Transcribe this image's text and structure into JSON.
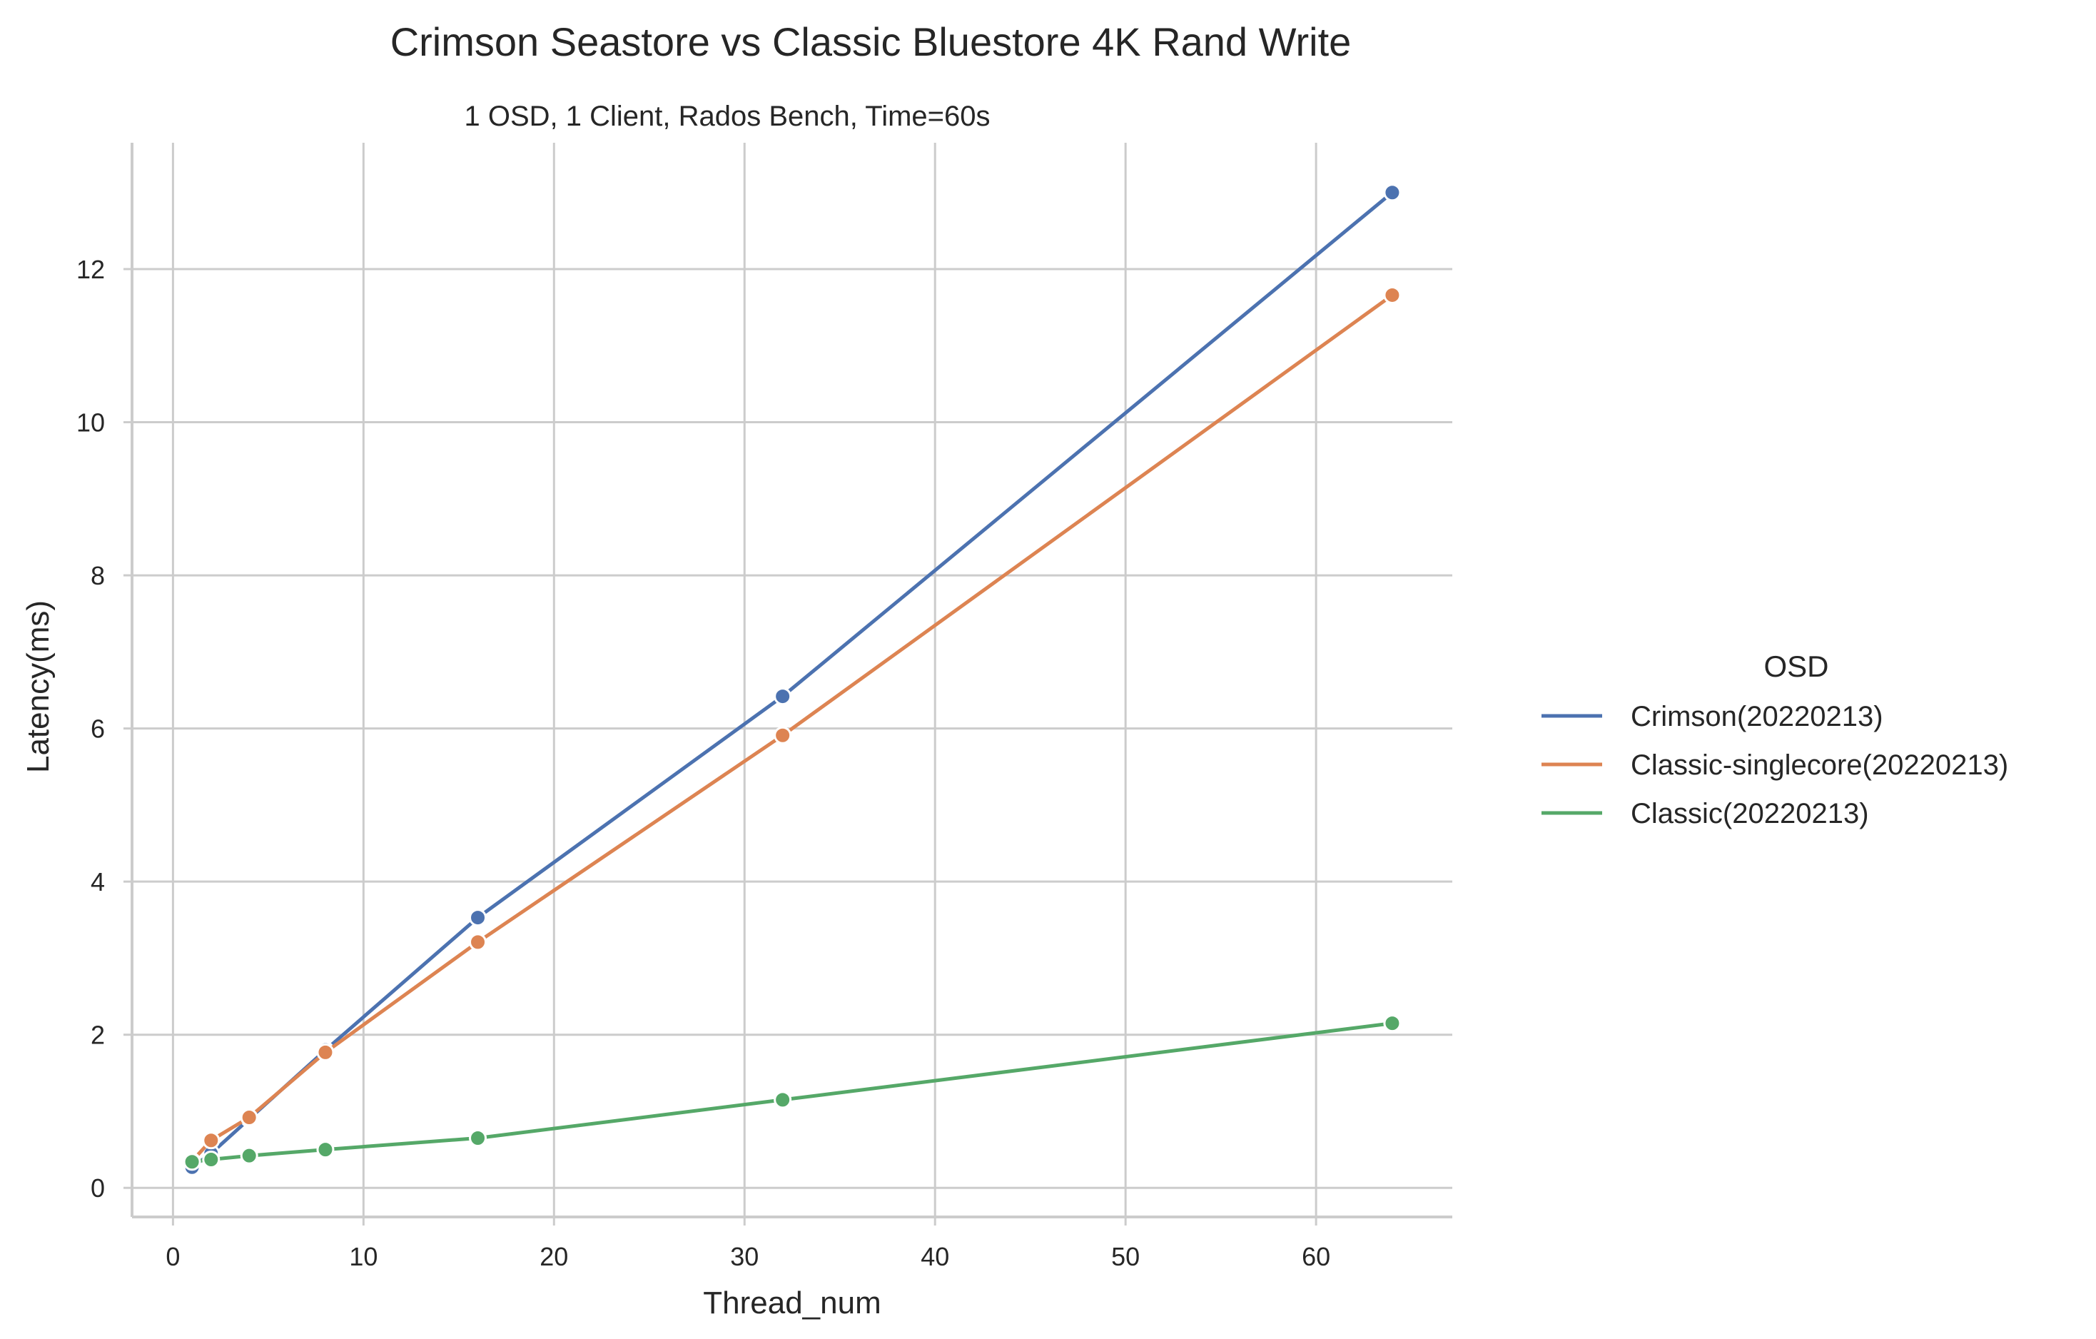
{
  "chart_data": {
    "type": "line",
    "title": "Crimson Seastore vs Classic Bluestore 4K Rand Write",
    "subtitle": "1 OSD, 1 Client, Rados Bench, Time=60s",
    "xlabel": "Thread_num",
    "ylabel": "Latency(ms)",
    "xlim": [
      -2.15,
      67.15
    ],
    "ylim": [
      -0.38,
      13.65
    ],
    "xticks": [
      0,
      10,
      20,
      30,
      40,
      50,
      60
    ],
    "yticks": [
      0,
      2,
      4,
      6,
      8,
      10,
      12
    ],
    "grid": true,
    "legend": {
      "title": "OSD",
      "placement": "right"
    },
    "x": [
      1,
      2,
      4,
      8,
      16,
      32,
      64
    ],
    "series": [
      {
        "name": "Crimson(20220213)",
        "color": "#4c72b0",
        "values": [
          0.27,
          0.45,
          0.9,
          1.8,
          3.53,
          6.42,
          13.0
        ]
      },
      {
        "name": "Classic-singlecore(20220213)",
        "color": "#dd8452",
        "values": [
          0.35,
          0.62,
          0.92,
          1.77,
          3.21,
          5.91,
          11.66
        ]
      },
      {
        "name": "Classic(20220213)",
        "color": "#55a868",
        "values": [
          0.34,
          0.37,
          0.42,
          0.5,
          0.65,
          1.15,
          2.15
        ]
      }
    ]
  }
}
